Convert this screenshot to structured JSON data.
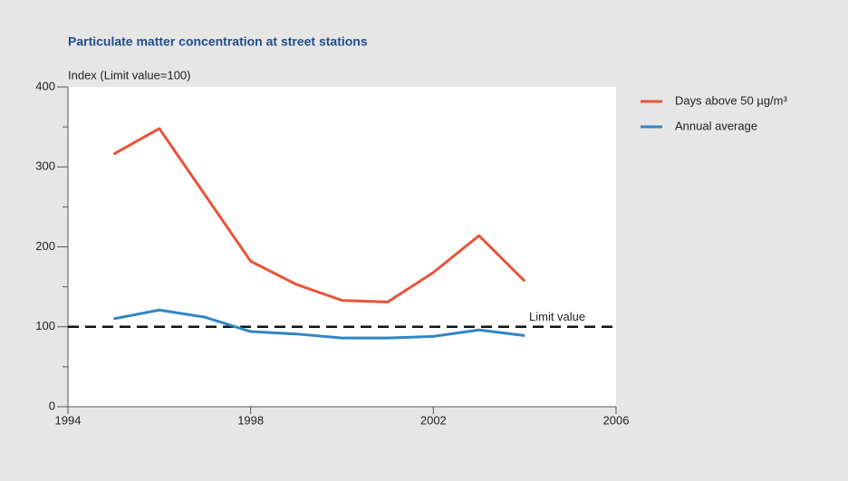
{
  "chart_data": {
    "type": "line",
    "title": "Particulate matter concentration at street stations",
    "y_axis_label": "Index (Limit value=100)",
    "x": [
      1995,
      1996,
      1997,
      1998,
      1999,
      2000,
      2001,
      2002,
      2003,
      2004
    ],
    "series": [
      {
        "name": "Days above 50 µg/m³",
        "color": "#e8553a",
        "values": [
          316,
          348,
          265,
          182,
          153,
          133,
          131,
          168,
          214,
          157
        ]
      },
      {
        "name": "Annual average",
        "color": "#2f86c6",
        "values": [
          110,
          121,
          112,
          94,
          91,
          86,
          86,
          88,
          96,
          89
        ]
      }
    ],
    "xlim": [
      1994,
      2006
    ],
    "xticks": [
      1994,
      1998,
      2002,
      2006
    ],
    "ylim": [
      0,
      400
    ],
    "yticks": [
      0,
      100,
      200,
      300,
      400
    ],
    "y_minor_ticks": [
      50,
      150,
      250,
      350
    ],
    "reference_line": {
      "value": 100,
      "label": "Limit value"
    },
    "legend": "right"
  }
}
